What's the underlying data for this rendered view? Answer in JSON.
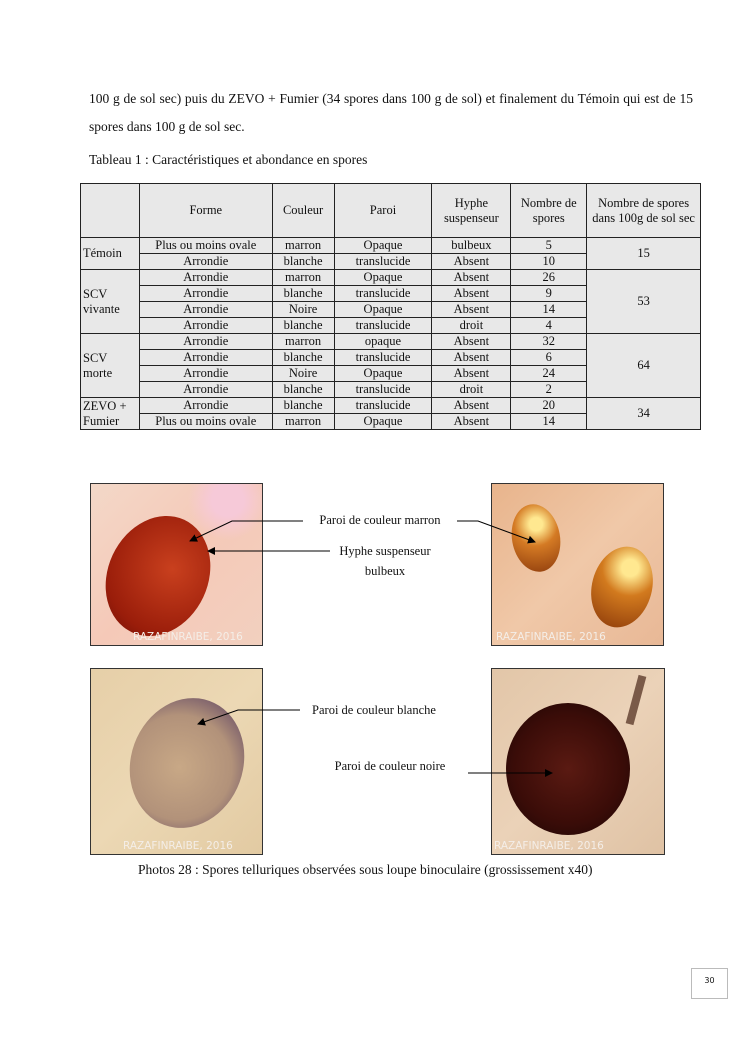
{
  "paragraph": "100 g de sol sec) puis du ZEVO + Fumier (34 spores dans 100 g de sol) et finalement du Témoin qui est de 15 spores dans 100 g de sol sec.",
  "table_caption": "Tableau 1 : Caractéristiques et abondance en spores",
  "table": {
    "headers": [
      "",
      "Forme",
      "Couleur",
      "Paroi",
      "Hyphe suspenseur",
      "Nombre de spores",
      "Nombre de spores dans 100g de sol sec"
    ],
    "groups": [
      {
        "name": "Témoin",
        "total": "15",
        "rows": [
          [
            "Plus ou moins ovale",
            "marron",
            "Opaque",
            "bulbeux",
            "5"
          ],
          [
            "Arrondie",
            "blanche",
            "translucide",
            "Absent",
            "10"
          ]
        ]
      },
      {
        "name": "SCV vivante",
        "total": "53",
        "rows": [
          [
            "Arrondie",
            "marron",
            "Opaque",
            "Absent",
            "26"
          ],
          [
            "Arrondie",
            "blanche",
            "translucide",
            "Absent",
            "9"
          ],
          [
            "Arrondie",
            "Noire",
            "Opaque",
            "Absent",
            "14"
          ],
          [
            "Arrondie",
            "blanche",
            "translucide",
            "droit",
            "4"
          ]
        ]
      },
      {
        "name": "SCV morte",
        "total": "64",
        "rows": [
          [
            "Arrondie",
            "marron",
            "opaque",
            "Absent",
            "32"
          ],
          [
            "Arrondie",
            "blanche",
            "translucide",
            "Absent",
            "6"
          ],
          [
            "Arrondie",
            "Noire",
            "Opaque",
            "Absent",
            "24"
          ],
          [
            "Arrondie",
            "blanche",
            "translucide",
            "droit",
            "2"
          ]
        ]
      },
      {
        "name": "ZEVO + Fumier",
        "total": "34",
        "rows": [
          [
            "Arrondie",
            "blanche",
            "translucide",
            "Absent",
            "20"
          ],
          [
            "Plus ou moins ovale",
            "marron",
            "Opaque",
            "Absent",
            "14"
          ]
        ]
      }
    ]
  },
  "photos": {
    "watermark": "RAZAFINRAIBE, 2016"
  },
  "labels": {
    "marron": "Paroi de couleur marron",
    "hyphe_1": "Hyphe suspenseur",
    "hyphe_2": "bulbeux",
    "blanche": "Paroi de couleur blanche",
    "noire": "Paroi de couleur noire"
  },
  "photo_caption": "Photos 28 : Spores telluriques observées sous loupe binoculaire (grossissement x40)",
  "page_number": "30"
}
